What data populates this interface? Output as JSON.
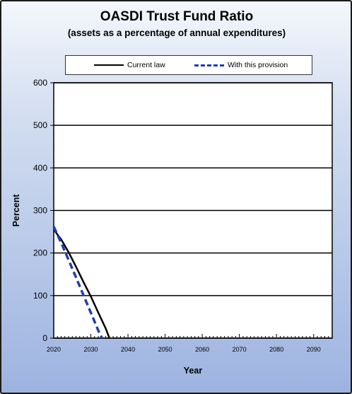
{
  "chart_data": {
    "type": "line",
    "title": "OASDI  Trust Fund Ratio",
    "subtitle": "(assets as a percentage of annual expenditures)",
    "xlabel": "Year",
    "ylabel": "Percent",
    "xlim": [
      2020,
      2095
    ],
    "ylim": [
      0,
      600
    ],
    "x_ticks": [
      "2020",
      "2030",
      "2040",
      "2050",
      "2060",
      "2070",
      "2080",
      "2090"
    ],
    "y_ticks": [
      "0",
      "100",
      "200",
      "300",
      "400",
      "500",
      "600"
    ],
    "grid": "horizontal",
    "legend": "top",
    "series": [
      {
        "name": "Current law",
        "color": "#000000",
        "style": "solid",
        "x": [
          2020,
          2022,
          2024,
          2026,
          2028,
          2030,
          2032,
          2034,
          2035
        ],
        "y": [
          255,
          232,
          202,
          168,
          132,
          98,
          60,
          23,
          0
        ]
      },
      {
        "name": "With this provision",
        "color": "#1f3fae",
        "style": "dashed",
        "x": [
          2020,
          2022,
          2024,
          2026,
          2028,
          2030,
          2032,
          2033
        ],
        "y": [
          262,
          224,
          184,
          143,
          101,
          60,
          18,
          0
        ]
      }
    ]
  }
}
